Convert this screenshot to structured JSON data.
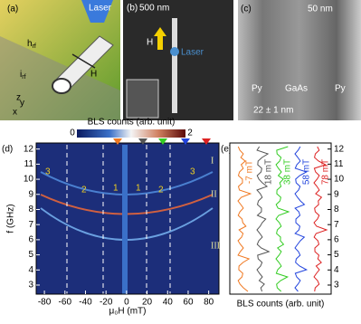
{
  "panel_a": {
    "label": "(a)",
    "laser": "Laser",
    "h_rf": "h",
    "h_rf_sub": "rf",
    "i_rf": "i",
    "i_rf_sub": "rf",
    "field": "H",
    "axes": [
      "x",
      "y",
      "z"
    ]
  },
  "panel_b": {
    "label": "(b)",
    "scale": "500 nm",
    "field": "H",
    "laser": "Laser"
  },
  "panel_c": {
    "label": "(c)",
    "scale": "50 nm",
    "left": "Py",
    "middle": "GaAs",
    "right": "Py",
    "thickness": "22 ± 1 nm"
  },
  "panel_d": {
    "label": "(d)",
    "colorbar_title": "BLS counts (arb. unit)",
    "colorbar_ticks": [
      0,
      2
    ],
    "xlabel": "μ₀H (mT)",
    "ylabel": "f (GHz)",
    "xticks": [
      -80,
      -60,
      -40,
      -20,
      0,
      20,
      40,
      60,
      80
    ],
    "xlim": [
      -88,
      90
    ],
    "yticks": [
      3,
      4,
      5,
      6,
      7,
      8,
      9,
      10,
      11,
      12
    ],
    "ylim": [
      2.4,
      12.4
    ],
    "mode_labels": [
      "3",
      "2",
      "1",
      "1",
      "2",
      "3"
    ],
    "regions": [
      "I",
      "II",
      "III"
    ]
  },
  "panel_e": {
    "label": "(e)",
    "xlabel": "BLS counts (arb. unit)",
    "traces": [
      {
        "name": "-7 mT",
        "color": "#f07820"
      },
      {
        "name": "18 mT",
        "color": "#555555"
      },
      {
        "name": "38 mT",
        "color": "#33cc22"
      },
      {
        "name": "58 mT",
        "color": "#2244dd"
      },
      {
        "name": "78 mT",
        "color": "#dd2222"
      }
    ]
  }
}
